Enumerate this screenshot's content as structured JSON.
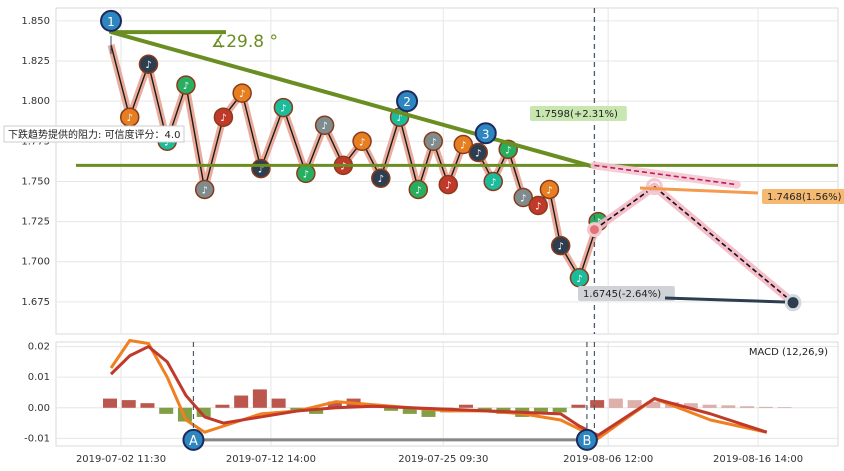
{
  "chart_data": [
    {
      "type": "line",
      "panel": "price",
      "x_ticks": [
        "2019-07-02 11:30",
        "2019-07-12 14:00",
        "2019-07-25 09:30",
        "2019-08-06 12:00",
        "2019-08-16 14:00"
      ],
      "y_ticks": [
        "1.675",
        "1.700",
        "1.725",
        "1.750",
        "1.775",
        "1.800",
        "1.825",
        "1.850"
      ],
      "ylim": [
        1.655,
        1.858
      ],
      "grid": true,
      "series": [
        {
          "name": "",
          "x": [
            0,
            5,
            10,
            15,
            20,
            25,
            30,
            35,
            40,
            46,
            52,
            57,
            62,
            67,
            72,
            77,
            82,
            86,
            90,
            94,
            98,
            102,
            106,
            110,
            114,
            117,
            120,
            125,
            130
          ],
          "values": [
            1.835,
            1.79,
            1.823,
            1.775,
            1.81,
            1.745,
            1.79,
            1.805,
            1.758,
            1.796,
            1.755,
            1.785,
            1.76,
            1.775,
            1.752,
            1.79,
            1.745,
            1.775,
            1.748,
            1.773,
            1.768,
            1.75,
            1.77,
            1.74,
            1.735,
            1.745,
            1.71,
            1.69,
            1.725
          ]
        }
      ],
      "pattern_points": [
        {
          "label": "1",
          "x": 0,
          "value": 1.85
        },
        {
          "label": "2",
          "x": 79,
          "value": 1.8
        },
        {
          "label": "3",
          "x": 100,
          "value": 1.78
        }
      ],
      "angle_annotation": "∡29.8 °",
      "resistance_note": "下跌趋势提供的阻力: 可信度评分：4.0",
      "resistance_level": 1.76,
      "current_marker": {
        "x": 129,
        "value": 1.72
      },
      "projections": [
        {
          "label": "1.7598(+2.31%)",
          "x": [
            129,
            167
          ],
          "values": [
            1.76,
            1.748
          ],
          "color": "#f4c8d2"
        },
        {
          "label": "1.7468(1.56%)",
          "x": [
            129,
            145
          ],
          "values": [
            1.72,
            1.7468
          ],
          "color": "#f39c4f"
        },
        {
          "label": "1.6745(-2.64%)",
          "x": [
            145,
            182
          ],
          "values": [
            1.7468,
            1.6745
          ],
          "color": "#2c3e50"
        }
      ]
    },
    {
      "type": "bar",
      "panel": "macd",
      "title": "MACD (12,26,9)",
      "y_ticks": [
        "-0.01",
        "0.00",
        "0.01",
        "0.02"
      ],
      "ylim": [
        -0.0125,
        0.0215
      ],
      "points": [
        {
          "label": "A",
          "x": 22
        },
        {
          "label": "B",
          "x": 127
        }
      ],
      "histogram": {
        "x": [
          0,
          5,
          10,
          15,
          20,
          25,
          30,
          35,
          40,
          45,
          50,
          55,
          60,
          65,
          70,
          75,
          80,
          85,
          90,
          95,
          100,
          105,
          110,
          115,
          120,
          125,
          130,
          135,
          140,
          145,
          150,
          155,
          160,
          165,
          170,
          175,
          180
        ],
        "values": [
          0.003,
          0.0025,
          0.0015,
          -0.002,
          -0.0045,
          -0.003,
          0.001,
          0.004,
          0.006,
          0.003,
          -0.001,
          -0.002,
          0.002,
          0.003,
          0.001,
          -0.001,
          -0.002,
          -0.003,
          -0.0015,
          0.001,
          -0.001,
          -0.002,
          -0.003,
          -0.002,
          -0.0015,
          0.001,
          0.0025,
          0.003,
          0.0025,
          0.002,
          0.0018,
          0.0015,
          0.001,
          0.0008,
          0.0005,
          0.0003,
          0.0002
        ]
      },
      "series": [
        {
          "name": "",
          "x": [
            0,
            5,
            10,
            15,
            20,
            25,
            30,
            40,
            50,
            60,
            70,
            80,
            90,
            100,
            110,
            120,
            125,
            130,
            145,
            160,
            175
          ],
          "values": [
            0.013,
            0.022,
            0.021,
            0.01,
            -0.004,
            -0.008,
            -0.006,
            -0.002,
            -0.001,
            0.002,
            0.001,
            0.0,
            -0.001,
            -0.001,
            -0.002,
            -0.004,
            -0.007,
            -0.01,
            0.003,
            -0.004,
            -0.008
          ],
          "color": "#f07f1f"
        },
        {
          "name": "",
          "x": [
            0,
            5,
            10,
            15,
            20,
            25,
            30,
            40,
            50,
            60,
            70,
            80,
            90,
            100,
            110,
            120,
            125,
            130,
            145,
            160,
            175
          ],
          "values": [
            0.011,
            0.017,
            0.02,
            0.015,
            0.004,
            -0.003,
            -0.005,
            -0.003,
            -0.001,
            0.0,
            0.0005,
            0.0,
            -0.0005,
            -0.001,
            -0.0015,
            -0.002,
            -0.006,
            -0.009,
            0.003,
            -0.002,
            -0.008
          ],
          "color": "#c0392b"
        }
      ]
    }
  ]
}
